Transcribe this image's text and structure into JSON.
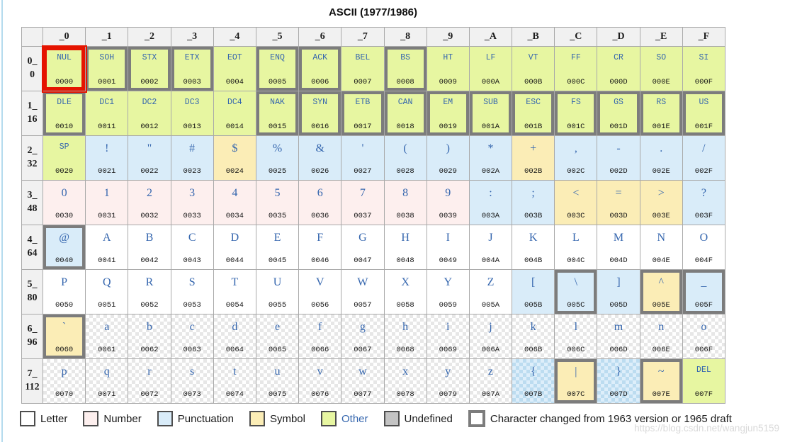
{
  "title": "ASCII (1977/1986)",
  "watermark": "https://blog.csdn.net/wangjun5159",
  "colors": {
    "letter": "#ffffff",
    "number": "#fdefee",
    "punct": "#d9ecf9",
    "symbol": "#fbedb6",
    "other": "#e7f6a1",
    "undefined_swatch": "#c3c3c3",
    "glyph_blue": "#3566ae",
    "changed_border": "#7c7c7c",
    "selected_border": "#e51400",
    "grid": "#a9a9a9"
  },
  "chart_data": {
    "type": "table",
    "title": "ASCII (1977/1986)",
    "col_headers": [
      "_0",
      "_1",
      "_2",
      "_3",
      "_4",
      "_5",
      "_6",
      "_7",
      "_8",
      "_9",
      "_A",
      "_B",
      "_C",
      "_D",
      "_E",
      "_F"
    ],
    "row_headers": [
      [
        "0_",
        "0"
      ],
      [
        "1_",
        "16"
      ],
      [
        "2_",
        "32"
      ],
      [
        "3_",
        "48"
      ],
      [
        "4_",
        "64"
      ],
      [
        "5_",
        "80"
      ],
      [
        "6_",
        "96"
      ],
      [
        "7_",
        "112"
      ]
    ],
    "cell_fields": [
      "char",
      "hex",
      "category",
      "flags"
    ],
    "flag_meaning": {
      "c": "thick gray border = changed from 1963 version or 1965 draft",
      "k": "checkerboard background",
      "r": "red highlight box"
    },
    "rows": [
      [
        [
          "NUL",
          "0000",
          "other",
          "r"
        ],
        [
          "SOH",
          "0001",
          "other",
          "c"
        ],
        [
          "STX",
          "0002",
          "other",
          "c"
        ],
        [
          "ETX",
          "0003",
          "other",
          "c"
        ],
        [
          "EOT",
          "0004",
          "other",
          ""
        ],
        [
          "ENQ",
          "0005",
          "other",
          "c"
        ],
        [
          "ACK",
          "0006",
          "other",
          "c"
        ],
        [
          "BEL",
          "0007",
          "other",
          ""
        ],
        [
          "BS",
          "0008",
          "other",
          "c"
        ],
        [
          "HT",
          "0009",
          "other",
          ""
        ],
        [
          "LF",
          "000A",
          "other",
          ""
        ],
        [
          "VT",
          "000B",
          "other",
          ""
        ],
        [
          "FF",
          "000C",
          "other",
          ""
        ],
        [
          "CR",
          "000D",
          "other",
          ""
        ],
        [
          "SO",
          "000E",
          "other",
          ""
        ],
        [
          "SI",
          "000F",
          "other",
          ""
        ]
      ],
      [
        [
          "DLE",
          "0010",
          "other",
          "c"
        ],
        [
          "DC1",
          "0011",
          "other",
          ""
        ],
        [
          "DC2",
          "0012",
          "other",
          ""
        ],
        [
          "DC3",
          "0013",
          "other",
          ""
        ],
        [
          "DC4",
          "0014",
          "other",
          ""
        ],
        [
          "NAK",
          "0015",
          "other",
          "c"
        ],
        [
          "SYN",
          "0016",
          "other",
          "c"
        ],
        [
          "ETB",
          "0017",
          "other",
          "c"
        ],
        [
          "CAN",
          "0018",
          "other",
          "c"
        ],
        [
          "EM",
          "0019",
          "other",
          "c"
        ],
        [
          "SUB",
          "001A",
          "other",
          "c"
        ],
        [
          "ESC",
          "001B",
          "other",
          "c"
        ],
        [
          "FS",
          "001C",
          "other",
          "c"
        ],
        [
          "GS",
          "001D",
          "other",
          "c"
        ],
        [
          "RS",
          "001E",
          "other",
          "c"
        ],
        [
          "US",
          "001F",
          "other",
          "c"
        ]
      ],
      [
        [
          "SP",
          "0020",
          "other",
          ""
        ],
        [
          "!",
          "0021",
          "punct",
          ""
        ],
        [
          "\"",
          "0022",
          "punct",
          ""
        ],
        [
          "#",
          "0023",
          "punct",
          ""
        ],
        [
          "$",
          "0024",
          "symbol",
          ""
        ],
        [
          "%",
          "0025",
          "punct",
          ""
        ],
        [
          "&",
          "0026",
          "punct",
          ""
        ],
        [
          "'",
          "0027",
          "punct",
          ""
        ],
        [
          "(",
          "0028",
          "punct",
          ""
        ],
        [
          ")",
          "0029",
          "punct",
          ""
        ],
        [
          "*",
          "002A",
          "punct",
          ""
        ],
        [
          "+",
          "002B",
          "symbol",
          ""
        ],
        [
          ",",
          "002C",
          "punct",
          ""
        ],
        [
          "-",
          "002D",
          "punct",
          ""
        ],
        [
          ".",
          "002E",
          "punct",
          ""
        ],
        [
          "/",
          "002F",
          "punct",
          ""
        ]
      ],
      [
        [
          "0",
          "0030",
          "number",
          ""
        ],
        [
          "1",
          "0031",
          "number",
          ""
        ],
        [
          "2",
          "0032",
          "number",
          ""
        ],
        [
          "3",
          "0033",
          "number",
          ""
        ],
        [
          "4",
          "0034",
          "number",
          ""
        ],
        [
          "5",
          "0035",
          "number",
          ""
        ],
        [
          "6",
          "0036",
          "number",
          ""
        ],
        [
          "7",
          "0037",
          "number",
          ""
        ],
        [
          "8",
          "0038",
          "number",
          ""
        ],
        [
          "9",
          "0039",
          "number",
          ""
        ],
        [
          ":",
          "003A",
          "punct",
          ""
        ],
        [
          ";",
          "003B",
          "punct",
          ""
        ],
        [
          "<",
          "003C",
          "symbol",
          ""
        ],
        [
          "=",
          "003D",
          "symbol",
          ""
        ],
        [
          ">",
          "003E",
          "symbol",
          ""
        ],
        [
          "?",
          "003F",
          "punct",
          ""
        ]
      ],
      [
        [
          "@",
          "0040",
          "punct",
          "c"
        ],
        [
          "A",
          "0041",
          "letter",
          ""
        ],
        [
          "B",
          "0042",
          "letter",
          ""
        ],
        [
          "C",
          "0043",
          "letter",
          ""
        ],
        [
          "D",
          "0044",
          "letter",
          ""
        ],
        [
          "E",
          "0045",
          "letter",
          ""
        ],
        [
          "F",
          "0046",
          "letter",
          ""
        ],
        [
          "G",
          "0047",
          "letter",
          ""
        ],
        [
          "H",
          "0048",
          "letter",
          ""
        ],
        [
          "I",
          "0049",
          "letter",
          ""
        ],
        [
          "J",
          "004A",
          "letter",
          ""
        ],
        [
          "K",
          "004B",
          "letter",
          ""
        ],
        [
          "L",
          "004C",
          "letter",
          ""
        ],
        [
          "M",
          "004D",
          "letter",
          ""
        ],
        [
          "N",
          "004E",
          "letter",
          ""
        ],
        [
          "O",
          "004F",
          "letter",
          ""
        ]
      ],
      [
        [
          "P",
          "0050",
          "letter",
          ""
        ],
        [
          "Q",
          "0051",
          "letter",
          ""
        ],
        [
          "R",
          "0052",
          "letter",
          ""
        ],
        [
          "S",
          "0053",
          "letter",
          ""
        ],
        [
          "T",
          "0054",
          "letter",
          ""
        ],
        [
          "U",
          "0055",
          "letter",
          ""
        ],
        [
          "V",
          "0056",
          "letter",
          ""
        ],
        [
          "W",
          "0057",
          "letter",
          ""
        ],
        [
          "X",
          "0058",
          "letter",
          ""
        ],
        [
          "Y",
          "0059",
          "letter",
          ""
        ],
        [
          "Z",
          "005A",
          "letter",
          ""
        ],
        [
          "[",
          "005B",
          "punct",
          ""
        ],
        [
          "\\",
          "005C",
          "punct",
          "c"
        ],
        [
          "]",
          "005D",
          "punct",
          ""
        ],
        [
          "^",
          "005E",
          "symbol",
          "c"
        ],
        [
          "_",
          "005F",
          "punct",
          "c"
        ]
      ],
      [
        [
          "`",
          "0060",
          "symbol",
          "c"
        ],
        [
          "a",
          "0061",
          "letter",
          "k"
        ],
        [
          "b",
          "0062",
          "letter",
          "k"
        ],
        [
          "c",
          "0063",
          "letter",
          "k"
        ],
        [
          "d",
          "0064",
          "letter",
          "k"
        ],
        [
          "e",
          "0065",
          "letter",
          "k"
        ],
        [
          "f",
          "0066",
          "letter",
          "k"
        ],
        [
          "g",
          "0067",
          "letter",
          "k"
        ],
        [
          "h",
          "0068",
          "letter",
          "k"
        ],
        [
          "i",
          "0069",
          "letter",
          "k"
        ],
        [
          "j",
          "006A",
          "letter",
          "k"
        ],
        [
          "k",
          "006B",
          "letter",
          "k"
        ],
        [
          "l",
          "006C",
          "letter",
          "k"
        ],
        [
          "m",
          "006D",
          "letter",
          "k"
        ],
        [
          "n",
          "006E",
          "letter",
          "k"
        ],
        [
          "o",
          "006F",
          "letter",
          "k"
        ]
      ],
      [
        [
          "p",
          "0070",
          "letter",
          "k"
        ],
        [
          "q",
          "0071",
          "letter",
          "k"
        ],
        [
          "r",
          "0072",
          "letter",
          "k"
        ],
        [
          "s",
          "0073",
          "letter",
          "k"
        ],
        [
          "t",
          "0074",
          "letter",
          "k"
        ],
        [
          "u",
          "0075",
          "letter",
          "k"
        ],
        [
          "v",
          "0076",
          "letter",
          "k"
        ],
        [
          "w",
          "0077",
          "letter",
          "k"
        ],
        [
          "x",
          "0078",
          "letter",
          "k"
        ],
        [
          "y",
          "0079",
          "letter",
          "k"
        ],
        [
          "z",
          "007A",
          "letter",
          "k"
        ],
        [
          "{",
          "007B",
          "punct",
          "k"
        ],
        [
          "|",
          "007C",
          "symbol",
          "c"
        ],
        [
          "}",
          "007D",
          "punct",
          "k"
        ],
        [
          "~",
          "007E",
          "symbol",
          "c"
        ],
        [
          "DEL",
          "007F",
          "other",
          ""
        ]
      ]
    ],
    "legend_position": "bottom",
    "grid": true
  },
  "legend": {
    "items": [
      {
        "label": "Letter",
        "key": "letter",
        "accent": false
      },
      {
        "label": "Number",
        "key": "number",
        "accent": false
      },
      {
        "label": "Punctuation",
        "key": "punct",
        "accent": false
      },
      {
        "label": "Symbol",
        "key": "symbol",
        "accent": false
      },
      {
        "label": "Other",
        "key": "other",
        "accent": true
      },
      {
        "label": "Undefined",
        "key": "undefined_swatch",
        "accent": false
      },
      {
        "label": "Character changed from 1963 version or 1965 draft",
        "key": "changed",
        "accent": false
      }
    ]
  }
}
